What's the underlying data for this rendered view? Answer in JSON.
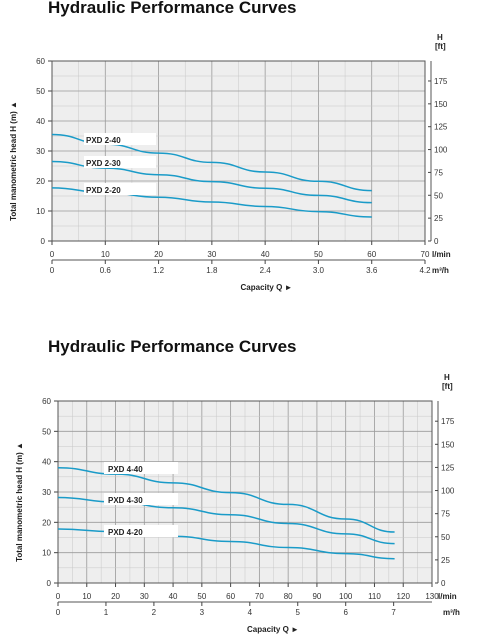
{
  "chart_data": [
    {
      "type": "line",
      "title": "Hydraulic Performance Curves",
      "ylabel": "Total manometric head H (m) ▲",
      "xlabel": "Capacity Q ►",
      "ylim": [
        0,
        60
      ],
      "yticks": [
        0,
        10,
        20,
        30,
        40,
        50,
        60
      ],
      "xlim": [
        0,
        70
      ],
      "xticks": [
        0,
        10,
        20,
        30,
        40,
        50,
        60,
        70
      ],
      "x_unit": "l/min",
      "x2_ticks": [
        "0",
        "0.6",
        "1.2",
        "1.8",
        "2.4",
        "3.0",
        "3.6",
        "4.2"
      ],
      "x2_unit": "m³/h",
      "y2_label": "H",
      "y2_unit": "[ft]",
      "y2_ticks": [
        0,
        25,
        50,
        75,
        100,
        125,
        150,
        175
      ],
      "grid": true,
      "series": [
        {
          "name": "PXD 2-40",
          "x": [
            0,
            10,
            20,
            30,
            40,
            50,
            60
          ],
          "y": [
            35.5,
            32.3,
            29.3,
            26.2,
            23.0,
            19.9,
            16.8
          ]
        },
        {
          "name": "PXD 2-30",
          "x": [
            0,
            10,
            20,
            30,
            40,
            50,
            60
          ],
          "y": [
            26.5,
            24.3,
            22.1,
            19.8,
            17.6,
            15.2,
            12.8
          ]
        },
        {
          "name": "PXD 2-20",
          "x": [
            0,
            10,
            20,
            30,
            40,
            50,
            60
          ],
          "y": [
            17.7,
            16.1,
            14.6,
            13.0,
            11.5,
            9.8,
            8.0
          ]
        }
      ]
    },
    {
      "type": "line",
      "title": "Hydraulic Performance Curves",
      "ylabel": "Total manometric head H (m) ▲",
      "xlabel": "Capacity Q ►",
      "ylim": [
        0,
        60
      ],
      "yticks": [
        0,
        10,
        20,
        30,
        40,
        50,
        60
      ],
      "xlim": [
        0,
        130
      ],
      "xticks": [
        0,
        10,
        20,
        30,
        40,
        50,
        60,
        70,
        80,
        90,
        100,
        110,
        120,
        130
      ],
      "x_unit": "l/min",
      "x2_ticks": [
        "0",
        "1",
        "2",
        "3",
        "4",
        "5",
        "6",
        "7"
      ],
      "x2_unit": "m³/h",
      "y2_label": "H",
      "y2_unit": "[ft]",
      "y2_ticks": [
        0,
        25,
        50,
        75,
        100,
        125,
        150,
        175
      ],
      "grid": true,
      "series": [
        {
          "name": "PXD 4-40",
          "x": [
            0,
            20,
            40,
            60,
            80,
            100,
            117
          ],
          "y": [
            38.0,
            35.9,
            33.0,
            29.8,
            25.9,
            21.1,
            16.8
          ]
        },
        {
          "name": "PXD 4-30",
          "x": [
            0,
            20,
            40,
            60,
            80,
            100,
            117
          ],
          "y": [
            28.2,
            26.7,
            24.8,
            22.5,
            19.6,
            16.2,
            13.0
          ]
        },
        {
          "name": "PXD 4-20",
          "x": [
            0,
            20,
            40,
            60,
            80,
            100,
            117
          ],
          "y": [
            17.8,
            16.9,
            15.4,
            13.7,
            11.7,
            9.7,
            8.0
          ]
        }
      ]
    }
  ]
}
